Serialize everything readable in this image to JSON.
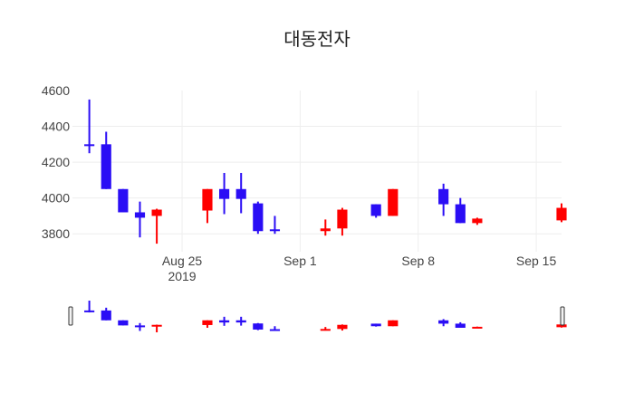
{
  "chart_data": {
    "type": "candlestick",
    "title": "대동전자",
    "xlabel": "",
    "ylabel": "",
    "grid": true,
    "legend": "none",
    "range_slider": true,
    "x_ticks": [
      {
        "date": "2019-08-25",
        "label": "Aug 25",
        "sublabel": "2019"
      },
      {
        "date": "2019-09-01",
        "label": "Sep 1",
        "sublabel": ""
      },
      {
        "date": "2019-09-08",
        "label": "Sep 8",
        "sublabel": ""
      },
      {
        "date": "2019-09-15",
        "label": "Sep 15",
        "sublabel": ""
      }
    ],
    "y_ticks": [
      3800,
      4000,
      4200,
      4400,
      4600
    ],
    "xlim": [
      "2019-08-18T12:00",
      "2019-09-16T12:00"
    ],
    "ylim": [
      3700,
      4600
    ],
    "colors": {
      "increasing": "#ff0000",
      "decreasing": "#2a0df5"
    },
    "candles": [
      {
        "date": "2019-08-19",
        "open": 4300,
        "high": 4550,
        "low": 4250,
        "close": 4290
      },
      {
        "date": "2019-08-20",
        "open": 4300,
        "high": 4370,
        "low": 4050,
        "close": 4050
      },
      {
        "date": "2019-08-21",
        "open": 4050,
        "high": 4050,
        "low": 3920,
        "close": 3920
      },
      {
        "date": "2019-08-22",
        "open": 3920,
        "high": 3980,
        "low": 3780,
        "close": 3890
      },
      {
        "date": "2019-08-23",
        "open": 3900,
        "high": 3940,
        "low": 3745,
        "close": 3935
      },
      {
        "date": "2019-08-26",
        "open": 3930,
        "high": 4050,
        "low": 3860,
        "close": 4050
      },
      {
        "date": "2019-08-27",
        "open": 4050,
        "high": 4140,
        "low": 3910,
        "close": 3995
      },
      {
        "date": "2019-08-28",
        "open": 4050,
        "high": 4140,
        "low": 3915,
        "close": 3995
      },
      {
        "date": "2019-08-29",
        "open": 3970,
        "high": 3980,
        "low": 3800,
        "close": 3815
      },
      {
        "date": "2019-08-30",
        "open": 3825,
        "high": 3900,
        "low": 3800,
        "close": 3815
      },
      {
        "date": "2019-09-02",
        "open": 3815,
        "high": 3880,
        "low": 3790,
        "close": 3830
      },
      {
        "date": "2019-09-03",
        "open": 3830,
        "high": 3945,
        "low": 3790,
        "close": 3935
      },
      {
        "date": "2019-09-05",
        "open": 3965,
        "high": 3965,
        "low": 3890,
        "close": 3900
      },
      {
        "date": "2019-09-06",
        "open": 3900,
        "high": 4050,
        "low": 3900,
        "close": 4050
      },
      {
        "date": "2019-09-09",
        "open": 4050,
        "high": 4080,
        "low": 3900,
        "close": 3965
      },
      {
        "date": "2019-09-10",
        "open": 3965,
        "high": 4000,
        "low": 3860,
        "close": 3860
      },
      {
        "date": "2019-09-11",
        "open": 3860,
        "high": 3890,
        "low": 3850,
        "close": 3885
      },
      {
        "date": "2019-09-16",
        "open": 3875,
        "high": 3970,
        "low": 3865,
        "close": 3945
      }
    ]
  }
}
